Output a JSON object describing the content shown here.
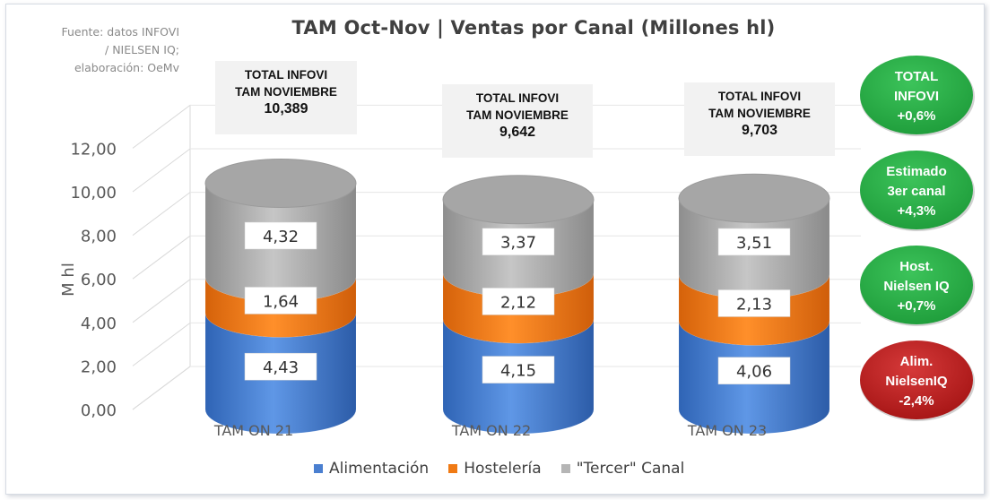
{
  "source_lines": [
    "Fuente: datos INFOVI",
    "/ NIELSEN IQ;",
    "elaboración: OeMv"
  ],
  "chart_data": {
    "type": "bar",
    "subtype": "stacked-3d-cylinder",
    "title": "TAM Oct-Nov | Ventas por Canal (Millones hl)",
    "ylabel": "M hl",
    "xlabel": "",
    "ylim": [
      0,
      12
    ],
    "yticks": [
      "0,00",
      "2,00",
      "4,00",
      "6,00",
      "8,00",
      "10,00",
      "12,00"
    ],
    "ytick_values": [
      0,
      2,
      4,
      6,
      8,
      10,
      12
    ],
    "categories": [
      "TAM ON 21",
      "TAM ON 22",
      "TAM ON 23"
    ],
    "series": [
      {
        "name": "Alimentación",
        "color": "#4a7fd0",
        "values": [
          4.43,
          4.15,
          4.06
        ],
        "labels": [
          "4,43",
          "4,15",
          "4,06"
        ]
      },
      {
        "name": "Hostelería",
        "color": "#f07a14",
        "values": [
          1.64,
          2.12,
          2.13
        ],
        "labels": [
          "1,64",
          "2,12",
          "2,13"
        ]
      },
      {
        "name": "\"Tercer\" Canal",
        "color": "#b5b5b5",
        "values": [
          4.32,
          3.37,
          3.51
        ],
        "labels": [
          "4,32",
          "3,37",
          "3,51"
        ]
      }
    ],
    "legend_position": "bottom",
    "annotations": [
      {
        "line1": "TOTAL INFOVI",
        "line2": "TAM NOVIEMBRE",
        "value": "10,389"
      },
      {
        "line1": "TOTAL INFOVI",
        "line2": "TAM NOVIEMBRE",
        "value": "9,642"
      },
      {
        "line1": "TOTAL INFOVI",
        "line2": "TAM NOVIEMBRE",
        "value": "9,703"
      }
    ]
  },
  "badges": [
    {
      "lines": [
        "TOTAL",
        "INFOVI",
        "+0,6%"
      ],
      "color": "#1e9c3a"
    },
    {
      "lines": [
        "Estimado",
        "3er canal",
        "+4,3%"
      ],
      "color": "#1e9c3a"
    },
    {
      "lines": [
        "Host.",
        "Nielsen IQ",
        "+0,7%"
      ],
      "color": "#1e9c3a"
    },
    {
      "lines": [
        "Alim.",
        "NielsenIQ",
        "-2,4%"
      ],
      "color": "#a51414"
    }
  ]
}
